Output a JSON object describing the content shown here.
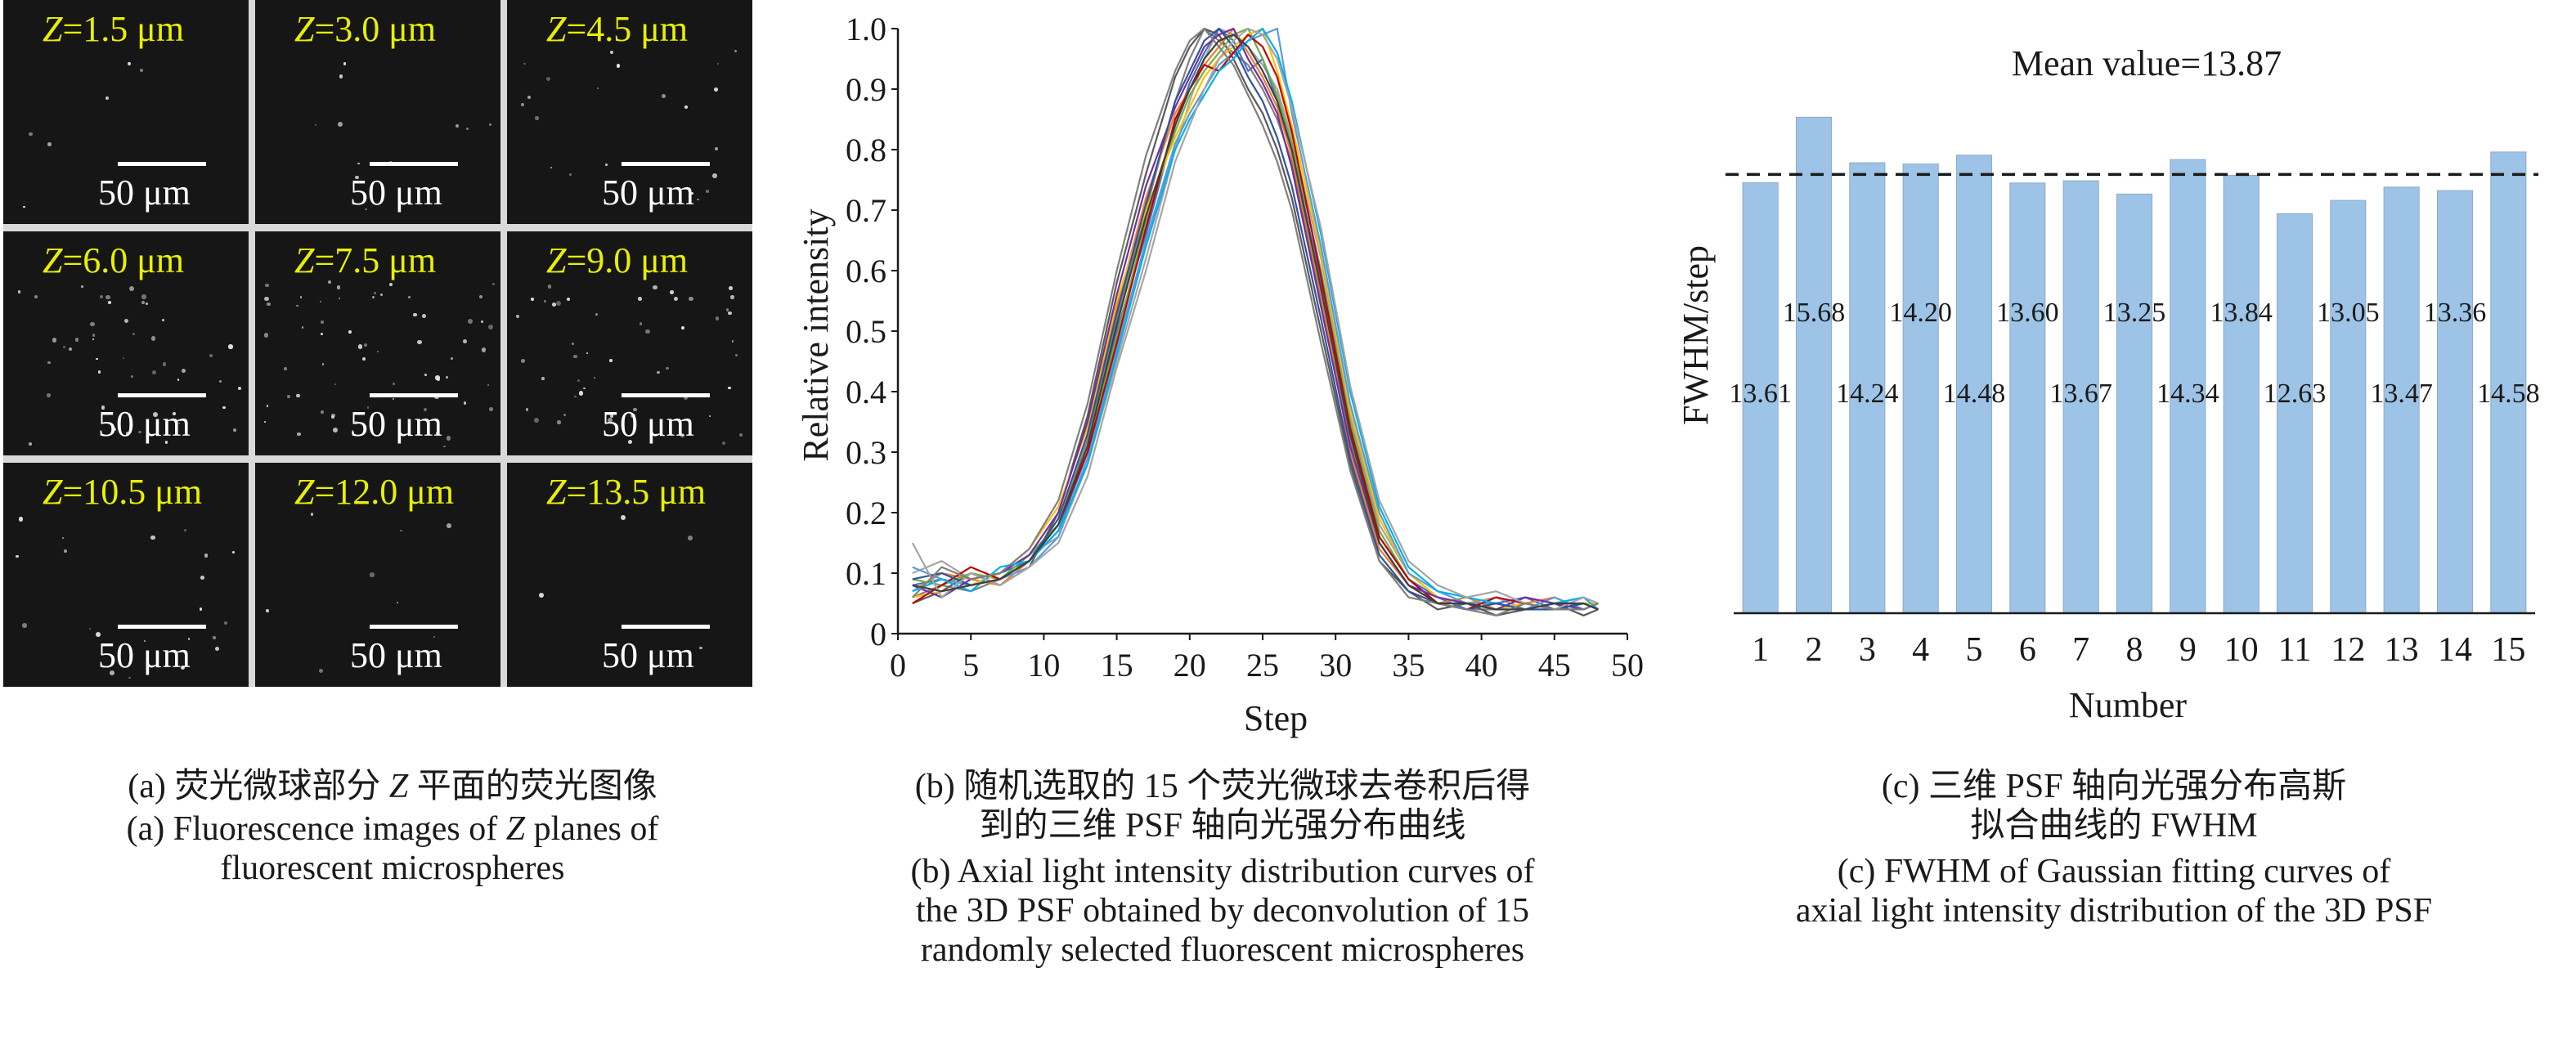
{
  "panel_a": {
    "cells": [
      {
        "z": "1.5",
        "unit": "μm",
        "scale": "50 μm",
        "density": 0.08
      },
      {
        "z": "3.0",
        "unit": "μm",
        "scale": "50 μm",
        "density": 0.15
      },
      {
        "z": "4.5",
        "unit": "μm",
        "scale": "50 μm",
        "density": 0.3
      },
      {
        "z": "6.0",
        "unit": "μm",
        "scale": "50 μm",
        "density": 0.65
      },
      {
        "z": "7.5",
        "unit": "μm",
        "scale": "50 μm",
        "density": 0.9
      },
      {
        "z": "9.0",
        "unit": "μm",
        "scale": "50 μm",
        "density": 0.75
      },
      {
        "z": "10.5",
        "unit": "μm",
        "scale": "50 μm",
        "density": 0.3
      },
      {
        "z": "12.0",
        "unit": "μm",
        "scale": "50 μm",
        "density": 0.12
      },
      {
        "z": "13.5",
        "unit": "μm",
        "scale": "50 μm",
        "density": 0.06
      }
    ],
    "z_prefix": "Z="
  },
  "captions": {
    "a_cn_prefix": "(a) 荧光微球部分 ",
    "a_cn_z": "Z",
    "a_cn_suffix": " 平面的荧光图像",
    "a_en_line1_prefix": "(a) Fluorescence images of ",
    "a_en_line1_z": "Z",
    "a_en_line1_suffix": " planes of",
    "a_en_line2": "fluorescent microspheres",
    "b_cn_line1": "(b) 随机选取的 15 个荧光微球去卷积后得",
    "b_cn_line2": "到的三维 PSF 轴向光强分布曲线",
    "b_en_line1": "(b) Axial light intensity distribution curves of",
    "b_en_line2": "the 3D PSF obtained by deconvolution of 15",
    "b_en_line3": "randomly selected fluorescent microspheres",
    "c_cn_line1": "(c) 三维 PSF 轴向光强分布高斯",
    "c_cn_line2": "拟合曲线的 FWHM",
    "c_en_line1": "(c) FWHM of Gaussian fitting curves of",
    "c_en_line2": "axial light intensity distribution of the 3D PSF"
  },
  "chart_data": [
    {
      "type": "line",
      "xlabel": "Step",
      "ylabel": "Relative intensity",
      "xlim": [
        0,
        50
      ],
      "ylim": [
        0,
        1.0
      ],
      "xticks": [
        "0",
        "5",
        "10",
        "15",
        "20",
        "25",
        "30",
        "35",
        "40",
        "45",
        "50"
      ],
      "yticks": [
        "0",
        "0.1",
        "0.2",
        "0.3",
        "0.4",
        "0.5",
        "0.6",
        "0.7",
        "0.8",
        "0.9",
        "1.0"
      ],
      "x": [
        1,
        3,
        5,
        7,
        9,
        11,
        13,
        15,
        17,
        19,
        20,
        21,
        22,
        23,
        24,
        25,
        26,
        27,
        29,
        31,
        33,
        35,
        37,
        39,
        41,
        43,
        45,
        47,
        48
      ],
      "series": [
        {
          "color": "#808080",
          "values": [
            0.06,
            0.08,
            0.07,
            0.09,
            0.12,
            0.18,
            0.32,
            0.52,
            0.7,
            0.88,
            0.95,
            1.0,
            0.98,
            0.96,
            0.94,
            0.9,
            0.85,
            0.78,
            0.55,
            0.32,
            0.15,
            0.08,
            0.05,
            0.04,
            0.04,
            0.05,
            0.04,
            0.04,
            0.05
          ]
        },
        {
          "color": "#a6a6a6",
          "values": [
            0.1,
            0.12,
            0.09,
            0.1,
            0.13,
            0.16,
            0.28,
            0.45,
            0.62,
            0.8,
            0.88,
            0.95,
            1.0,
            0.99,
            0.97,
            0.94,
            0.9,
            0.82,
            0.62,
            0.36,
            0.18,
            0.1,
            0.06,
            0.05,
            0.06,
            0.04,
            0.05,
            0.06,
            0.05
          ]
        },
        {
          "color": "#595959",
          "values": [
            0.05,
            0.07,
            0.1,
            0.08,
            0.11,
            0.2,
            0.36,
            0.58,
            0.76,
            0.92,
            0.97,
            1.0,
            0.99,
            0.95,
            0.9,
            0.86,
            0.8,
            0.72,
            0.5,
            0.28,
            0.12,
            0.07,
            0.04,
            0.05,
            0.03,
            0.04,
            0.05,
            0.03,
            0.04
          ]
        },
        {
          "color": "#4472c4",
          "values": [
            0.08,
            0.09,
            0.08,
            0.1,
            0.12,
            0.17,
            0.3,
            0.5,
            0.66,
            0.84,
            0.91,
            0.96,
            1.0,
            0.98,
            0.93,
            0.95,
            0.88,
            0.8,
            0.58,
            0.33,
            0.16,
            0.09,
            0.06,
            0.04,
            0.05,
            0.06,
            0.04,
            0.05,
            0.04
          ]
        },
        {
          "color": "#ed7d31",
          "values": [
            0.07,
            0.1,
            0.09,
            0.08,
            0.12,
            0.19,
            0.33,
            0.54,
            0.72,
            0.86,
            0.9,
            0.94,
            0.97,
            1.0,
            0.96,
            0.92,
            0.87,
            0.79,
            0.56,
            0.3,
            0.14,
            0.08,
            0.05,
            0.06,
            0.04,
            0.05,
            0.06,
            0.04,
            0.05
          ]
        },
        {
          "color": "#70ad47",
          "values": [
            0.09,
            0.08,
            0.1,
            0.09,
            0.13,
            0.18,
            0.31,
            0.49,
            0.68,
            0.83,
            0.89,
            0.93,
            0.96,
            0.99,
            1.0,
            0.95,
            0.89,
            0.81,
            0.6,
            0.35,
            0.17,
            0.09,
            0.05,
            0.05,
            0.05,
            0.04,
            0.05,
            0.05,
            0.04
          ]
        },
        {
          "color": "#ffc000",
          "values": [
            0.06,
            0.07,
            0.08,
            0.1,
            0.14,
            0.21,
            0.34,
            0.55,
            0.7,
            0.82,
            0.87,
            0.92,
            0.95,
            0.97,
            0.99,
            1.0,
            0.93,
            0.84,
            0.63,
            0.37,
            0.19,
            0.1,
            0.06,
            0.05,
            0.04,
            0.05,
            0.04,
            0.05,
            0.05
          ]
        },
        {
          "color": "#5b9bd5",
          "values": [
            0.11,
            0.09,
            0.08,
            0.09,
            0.11,
            0.16,
            0.29,
            0.47,
            0.65,
            0.81,
            0.86,
            0.9,
            0.94,
            0.96,
            0.98,
            0.99,
            1.0,
            0.86,
            0.64,
            0.38,
            0.2,
            0.1,
            0.07,
            0.05,
            0.05,
            0.04,
            0.06,
            0.04,
            0.05
          ]
        },
        {
          "color": "#c00000",
          "values": [
            0.05,
            0.08,
            0.11,
            0.09,
            0.12,
            0.18,
            0.3,
            0.48,
            0.67,
            0.85,
            0.9,
            0.94,
            0.93,
            0.96,
            0.99,
            0.97,
            0.92,
            0.83,
            0.59,
            0.34,
            0.16,
            0.09,
            0.05,
            0.04,
            0.06,
            0.05,
            0.04,
            0.05,
            0.04
          ]
        },
        {
          "color": "#7030a0",
          "values": [
            0.08,
            0.06,
            0.09,
            0.1,
            0.13,
            0.2,
            0.35,
            0.56,
            0.74,
            0.87,
            0.92,
            0.97,
            0.99,
            1.0,
            0.95,
            0.91,
            0.86,
            0.77,
            0.54,
            0.31,
            0.15,
            0.08,
            0.06,
            0.05,
            0.04,
            0.06,
            0.05,
            0.04,
            0.05
          ]
        },
        {
          "color": "#00b0f0",
          "values": [
            0.07,
            0.09,
            0.07,
            0.11,
            0.12,
            0.17,
            0.28,
            0.46,
            0.64,
            0.8,
            0.85,
            0.89,
            0.93,
            0.95,
            0.98,
            1.0,
            0.96,
            0.88,
            0.66,
            0.4,
            0.21,
            0.11,
            0.07,
            0.06,
            0.05,
            0.04,
            0.05,
            0.06,
            0.04
          ]
        },
        {
          "color": "#2f5597",
          "values": [
            0.09,
            0.1,
            0.08,
            0.09,
            0.12,
            0.19,
            0.33,
            0.53,
            0.71,
            0.88,
            0.93,
            0.98,
            1.0,
            0.97,
            0.92,
            0.88,
            0.82,
            0.74,
            0.52,
            0.29,
            0.13,
            0.07,
            0.05,
            0.04,
            0.05,
            0.04,
            0.04,
            0.05,
            0.04
          ]
        },
        {
          "color": "#a5a5a5",
          "values": [
            0.15,
            0.06,
            0.1,
            0.08,
            0.11,
            0.15,
            0.26,
            0.44,
            0.6,
            0.78,
            0.84,
            0.9,
            0.95,
            0.98,
            1.0,
            0.99,
            0.95,
            0.87,
            0.67,
            0.41,
            0.22,
            0.12,
            0.08,
            0.06,
            0.07,
            0.05,
            0.04,
            0.06,
            0.05
          ]
        },
        {
          "color": "#7f7f7f",
          "values": [
            0.06,
            0.11,
            0.09,
            0.1,
            0.14,
            0.22,
            0.38,
            0.6,
            0.79,
            0.93,
            0.98,
            1.0,
            0.97,
            0.94,
            0.89,
            0.84,
            0.78,
            0.7,
            0.48,
            0.27,
            0.12,
            0.06,
            0.05,
            0.04,
            0.03,
            0.05,
            0.04,
            0.04,
            0.05
          ]
        },
        {
          "color": "#404040",
          "values": [
            0.08,
            0.07,
            0.08,
            0.09,
            0.12,
            0.18,
            0.31,
            0.51,
            0.69,
            0.84,
            0.9,
            0.95,
            0.98,
            0.99,
            0.97,
            0.93,
            0.88,
            0.8,
            0.57,
            0.33,
            0.15,
            0.08,
            0.05,
            0.05,
            0.04,
            0.04,
            0.05,
            0.05,
            0.04
          ]
        }
      ]
    },
    {
      "type": "bar",
      "title": "Mean value=13.87",
      "xlabel": "Number",
      "ylabel": "FWHM/step",
      "categories": [
        "1",
        "2",
        "3",
        "4",
        "5",
        "6",
        "7",
        "8",
        "9",
        "10",
        "11",
        "12",
        "13",
        "14",
        "15"
      ],
      "values": [
        13.61,
        15.68,
        14.24,
        14.2,
        14.48,
        13.6,
        13.67,
        13.25,
        14.34,
        13.84,
        12.63,
        13.05,
        13.47,
        13.36,
        14.58
      ],
      "data_labels": [
        "13.61",
        "15.68",
        "14.24",
        "14.20",
        "14.48",
        "13.60",
        "13.67",
        "13.25",
        "14.34",
        "13.84",
        "12.63",
        "13.05",
        "13.47",
        "13.36",
        "14.58"
      ],
      "mean": 13.87,
      "bar_color": "#9dc3e6",
      "grid": false
    }
  ]
}
